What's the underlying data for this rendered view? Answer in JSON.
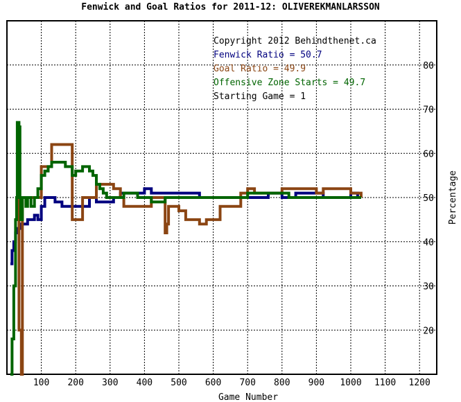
{
  "chart_data": {
    "type": "line",
    "title": "Fenwick and Goal Ratios for 2011-12: OLIVEREKMANLARSSON",
    "xlabel": "Game Number",
    "ylabel": "Percentage",
    "xlim": [
      0,
      1250
    ],
    "ylim": [
      10,
      90
    ],
    "x_ticks": [
      100,
      200,
      300,
      400,
      500,
      600,
      700,
      800,
      900,
      1000,
      1100,
      1200
    ],
    "y_ticks": [
      20,
      30,
      40,
      50,
      60,
      70,
      80
    ],
    "grid": true,
    "legend_position": "top-right",
    "annotations": [
      {
        "text": "Copyright 2012 Behindthenet.ca",
        "color": "#000000"
      },
      {
        "text": "Fenwick Ratio = 50.7",
        "color": "#00007f"
      },
      {
        "text": "Goal Ratio = 49.9",
        "color": "#8b4513"
      },
      {
        "text": "Offensive Zone Starts = 49.7",
        "color": "#006400"
      },
      {
        "text": "Starting Game = 1",
        "color": "#000000"
      }
    ],
    "series": [
      {
        "name": "Fenwick Ratio",
        "color": "#00007f",
        "x": [
          10,
          15,
          20,
          25,
          28,
          35,
          40,
          48,
          60,
          70,
          80,
          90,
          100,
          110,
          120,
          140,
          160,
          180,
          190,
          210,
          220,
          240,
          260,
          280,
          300,
          310,
          330,
          350,
          380,
          400,
          420,
          440,
          460,
          480,
          500,
          520,
          560,
          600,
          640,
          680,
          720,
          760,
          800,
          840,
          880,
          920,
          960,
          1000,
          1020,
          1030
        ],
        "y": [
          35,
          38,
          40,
          42,
          43,
          43,
          44,
          44,
          45,
          45,
          46,
          45,
          48,
          50,
          50,
          49,
          48,
          48,
          48,
          48,
          48,
          50,
          49,
          49,
          49,
          50,
          51,
          51,
          51,
          52,
          51,
          51,
          51,
          51,
          51,
          51,
          50,
          50,
          50,
          50,
          50,
          51,
          50,
          51,
          51,
          50,
          50,
          51,
          50,
          50
        ]
      },
      {
        "name": "Goal Ratio",
        "color": "#8b4513",
        "x": [
          30,
          35,
          42,
          45,
          50,
          60,
          80,
          90,
          100,
          110,
          130,
          150,
          160,
          170,
          180,
          190,
          200,
          210,
          220,
          230,
          240,
          250,
          260,
          280,
          300,
          310,
          330,
          340,
          360,
          380,
          400,
          420,
          440,
          460,
          465,
          470,
          480,
          500,
          520,
          540,
          560,
          580,
          600,
          620,
          640,
          680,
          700,
          720,
          760,
          800,
          820,
          850,
          880,
          900,
          920,
          960,
          1000,
          1030
        ],
        "y": [
          50,
          20,
          10,
          50,
          50,
          50,
          50,
          50,
          57,
          57,
          62,
          62,
          62,
          62,
          62,
          45,
          45,
          45,
          50,
          50,
          50,
          50,
          53,
          53,
          53,
          52,
          50,
          48,
          48,
          48,
          48,
          50,
          50,
          42,
          44,
          48,
          48,
          47,
          45,
          45,
          44,
          45,
          45,
          48,
          48,
          51,
          52,
          51,
          51,
          52,
          52,
          52,
          52,
          51,
          52,
          52,
          51,
          50
        ]
      },
      {
        "name": "Offensive Zone Starts",
        "color": "#006400",
        "x": [
          10,
          15,
          20,
          25,
          28,
          30,
          33,
          35,
          38,
          40,
          45,
          50,
          55,
          60,
          65,
          70,
          80,
          90,
          100,
          110,
          120,
          130,
          140,
          150,
          160,
          170,
          180,
          190,
          200,
          210,
          220,
          230,
          240,
          250,
          260,
          270,
          280,
          290,
          300,
          310,
          320,
          340,
          360,
          380,
          400,
          420,
          440,
          460,
          500,
          540,
          580,
          620,
          660,
          700,
          740,
          780,
          800,
          820,
          850,
          880,
          900,
          940,
          980,
          1000,
          1020,
          1030
        ],
        "y": [
          10,
          18,
          30,
          45,
          50,
          67,
          67,
          66,
          50,
          45,
          50,
          50,
          48,
          50,
          50,
          48,
          50,
          52,
          55,
          56,
          57,
          58,
          58,
          58,
          58,
          57,
          57,
          55,
          56,
          56,
          57,
          57,
          56,
          55,
          53,
          52,
          51,
          50,
          50,
          50,
          50,
          51,
          51,
          50,
          50,
          49,
          49,
          50,
          50,
          50,
          50,
          50,
          50,
          51,
          51,
          51,
          51,
          50,
          50,
          50,
          50,
          50,
          50,
          50,
          50,
          50
        ]
      }
    ]
  }
}
